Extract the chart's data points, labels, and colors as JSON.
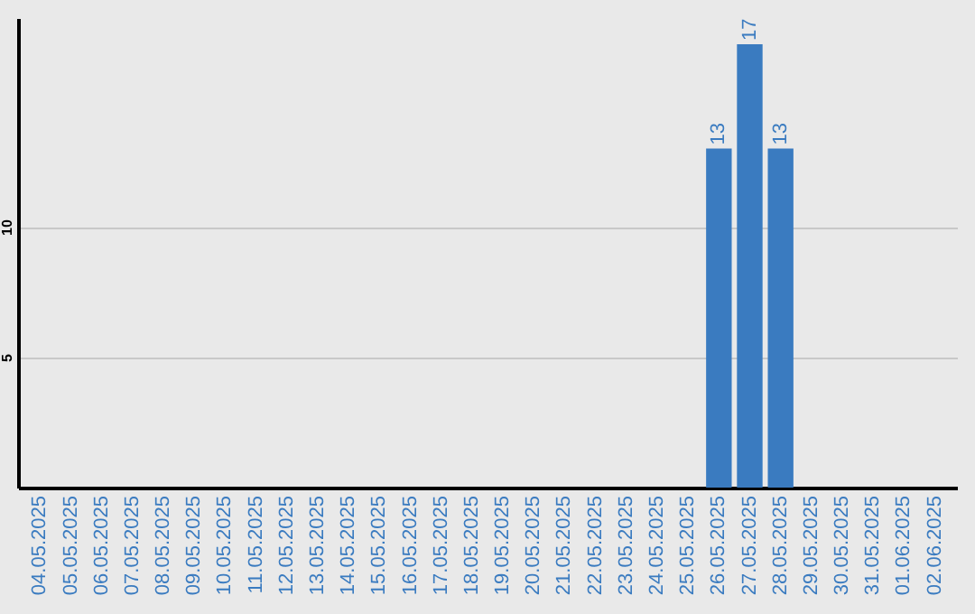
{
  "chart_data": {
    "type": "bar",
    "categories": [
      "04.05.2025",
      "05.05.2025",
      "06.05.2025",
      "07.05.2025",
      "08.05.2025",
      "09.05.2025",
      "10.05.2025",
      "11.05.2025",
      "12.05.2025",
      "13.05.2025",
      "14.05.2025",
      "15.05.2025",
      "16.05.2025",
      "17.05.2025",
      "18.05.2025",
      "19.05.2025",
      "20.05.2025",
      "21.05.2025",
      "22.05.2025",
      "23.05.2025",
      "24.05.2025",
      "25.05.2025",
      "26.05.2025",
      "27.05.2025",
      "28.05.2025",
      "29.05.2025",
      "30.05.2025",
      "31.05.2025",
      "01.06.2025",
      "02.06.2025"
    ],
    "values": [
      0,
      0,
      0,
      0,
      0,
      0,
      0,
      0,
      0,
      0,
      0,
      0,
      0,
      0,
      0,
      0,
      0,
      0,
      0,
      0,
      0,
      0,
      13,
      17,
      13,
      0,
      0,
      0,
      0,
      0
    ],
    "value_labels": [
      null,
      null,
      null,
      null,
      null,
      null,
      null,
      null,
      null,
      null,
      null,
      null,
      null,
      null,
      null,
      null,
      null,
      null,
      null,
      null,
      null,
      null,
      "13",
      "17",
      "13",
      null,
      null,
      null,
      null,
      null
    ],
    "color": "#3a7bc0",
    "ylim": [
      0,
      18
    ],
    "yticks": [
      5,
      10
    ],
    "grid": "y"
  }
}
